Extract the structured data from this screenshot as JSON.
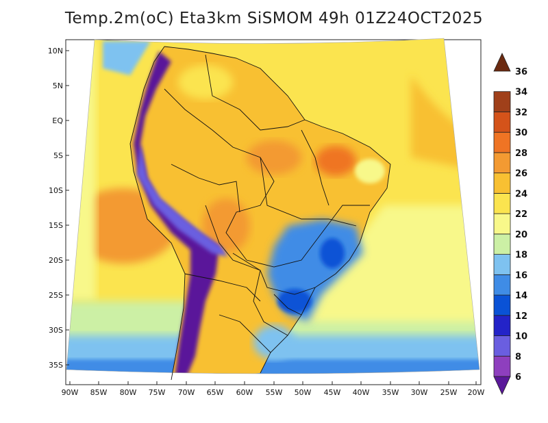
{
  "title": "Temp.2m(oC) Eta3km SiSMOM 49h 01Z24OCT2025",
  "map": {
    "region": "South America",
    "projection": "lambert-conformal",
    "lon_range": [
      -90,
      -20
    ],
    "lat_range": [
      -37,
      12
    ],
    "lat_ticks": [
      "10N",
      "5N",
      "EQ",
      "5S",
      "10S",
      "15S",
      "20S",
      "25S",
      "30S",
      "35S"
    ],
    "lon_ticks": [
      "90W",
      "85W",
      "80W",
      "75W",
      "70W",
      "65W",
      "60W",
      "55W",
      "50W",
      "45W",
      "40W",
      "35W",
      "30W",
      "25W",
      "20W"
    ]
  },
  "colorbar": {
    "labels": [
      "6",
      "8",
      "10",
      "12",
      "14",
      "16",
      "18",
      "20",
      "22",
      "24",
      "26",
      "28",
      "30",
      "32",
      "34",
      "36"
    ],
    "colors": [
      "#5a189a",
      "#8e3fbe",
      "#6a5ee0",
      "#2323c8",
      "#0a52d6",
      "#3f8ce6",
      "#7ec2f0",
      "#ccf0a5",
      "#f8f88a",
      "#fbe44f",
      "#f8c032",
      "#f39a32",
      "#ef7424",
      "#d4531a",
      "#a0401a",
      "#6b2a10"
    ],
    "min": 6,
    "max": 36,
    "units": "oC"
  },
  "colors": {
    "land_warm": "#f8c032",
    "ocean_warm": "#fbe44f",
    "andes": "#5a189a",
    "cold_south": "#3f8ce6",
    "hot_spot": "#ef7424"
  }
}
